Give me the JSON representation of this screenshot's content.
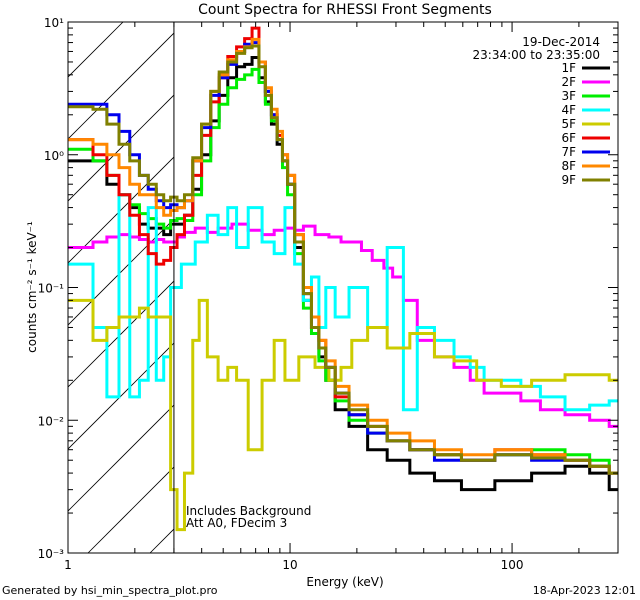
{
  "footer": {
    "generated_by": "Generated by hsi_min_spectra_plot.pro",
    "timestamp": "18-Apr-2023 12:01"
  },
  "chart_data": {
    "type": "line",
    "title": "Count Spectra for RHESSI Front Segments",
    "xlabel": "Energy (keV)",
    "ylabel": "counts cm⁻² s⁻¹ keV⁻¹",
    "xscale": "log",
    "yscale": "log",
    "xlim": [
      1,
      300
    ],
    "ylim": [
      0.001,
      10
    ],
    "x_ticks": [
      {
        "v": 1,
        "label": "1"
      },
      {
        "v": 10,
        "label": "10"
      },
      {
        "v": 100,
        "label": "100"
      }
    ],
    "y_ticks": [
      {
        "v": 0.001,
        "label": "10⁻³"
      },
      {
        "v": 0.01,
        "label": "10⁻²"
      },
      {
        "v": 0.1,
        "label": "10⁻¹"
      },
      {
        "v": 1,
        "label": "10⁰"
      },
      {
        "v": 10,
        "label": "10¹"
      }
    ],
    "attenuator_boundary_keV": 3,
    "legend_position": "top-right",
    "legend_header": [
      "19-Dec-2014",
      "23:34:00 to 23:35:00"
    ],
    "annotations": [
      "Includes Background",
      "Att A0, FDecim 3"
    ],
    "series": [
      {
        "name": "1F",
        "color": "#000000",
        "x": [
          1.2,
          1.4,
          1.6,
          1.8,
          2.0,
          2.2,
          2.4,
          2.6,
          2.8,
          3.0,
          3.2,
          3.5,
          3.8,
          4.2,
          4.6,
          5.0,
          5.5,
          6.0,
          6.5,
          7.0,
          7.5,
          8.0,
          8.5,
          9.0,
          9.5,
          10,
          11,
          12,
          13,
          14,
          15,
          17,
          20,
          25,
          30,
          40,
          50,
          70,
          100,
          150,
          200,
          250,
          300
        ],
        "y": [
          0.9,
          0.9,
          0.6,
          0.5,
          0.4,
          0.3,
          0.28,
          0.28,
          0.25,
          0.3,
          0.3,
          0.35,
          0.55,
          1.0,
          1.8,
          2.8,
          3.8,
          4.6,
          4.8,
          5.4,
          3.8,
          2.5,
          1.7,
          1.2,
          0.9,
          0.6,
          0.2,
          0.08,
          0.05,
          0.03,
          0.02,
          0.012,
          0.009,
          0.006,
          0.005,
          0.004,
          0.0035,
          0.003,
          0.0035,
          0.004,
          0.0045,
          0.004,
          0.003
        ]
      },
      {
        "name": "2F",
        "color": "#ff00ff",
        "x": [
          1.2,
          1.4,
          1.6,
          1.8,
          2.0,
          2.2,
          2.4,
          2.6,
          2.8,
          3.0,
          3.2,
          3.5,
          4.0,
          4.5,
          5.0,
          6.0,
          7.0,
          8.0,
          9.0,
          10,
          11,
          12,
          14,
          16,
          18,
          20,
          22,
          25,
          28,
          30,
          35,
          40,
          50,
          60,
          70,
          80,
          100,
          120,
          150,
          200,
          250,
          300
        ],
        "y": [
          0.2,
          0.22,
          0.24,
          0.25,
          0.24,
          0.23,
          0.22,
          0.23,
          0.22,
          0.22,
          0.24,
          0.26,
          0.28,
          0.26,
          0.28,
          0.3,
          0.27,
          0.25,
          0.27,
          0.28,
          0.27,
          0.29,
          0.25,
          0.24,
          0.22,
          0.22,
          0.19,
          0.16,
          0.14,
          0.12,
          0.08,
          0.04,
          0.03,
          0.025,
          0.02,
          0.016,
          0.016,
          0.014,
          0.012,
          0.011,
          0.01,
          0.009
        ]
      },
      {
        "name": "3F",
        "color": "#00ee00",
        "x": [
          1.2,
          1.4,
          1.6,
          1.8,
          2.0,
          2.2,
          2.4,
          2.6,
          2.8,
          3.0,
          3.2,
          3.5,
          3.8,
          4.2,
          4.6,
          5.0,
          5.5,
          6.0,
          6.5,
          7.0,
          7.5,
          8.0,
          8.5,
          9.0,
          9.5,
          10,
          11,
          12,
          13,
          14,
          15,
          17,
          20,
          25,
          30,
          40,
          50,
          70,
          100,
          150,
          200,
          250,
          300
        ],
        "y": [
          1.1,
          0.9,
          0.7,
          0.5,
          0.42,
          0.36,
          0.33,
          0.3,
          0.28,
          0.32,
          0.33,
          0.32,
          0.5,
          0.9,
          1.6,
          2.4,
          3.2,
          3.7,
          4.0,
          4.4,
          3.5,
          2.4,
          1.8,
          1.3,
          0.8,
          0.5,
          0.18,
          0.07,
          0.045,
          0.028,
          0.02,
          0.014,
          0.01,
          0.008,
          0.007,
          0.006,
          0.0055,
          0.005,
          0.0055,
          0.006,
          0.0055,
          0.005,
          0.004
        ]
      },
      {
        "name": "4F",
        "color": "#00ffff",
        "x": [
          1.2,
          1.4,
          1.6,
          1.8,
          2.0,
          2.2,
          2.4,
          2.6,
          2.8,
          3.0,
          3.5,
          4.0,
          4.5,
          5.0,
          5.5,
          6.0,
          7.0,
          8.0,
          9.0,
          10,
          11,
          12,
          13,
          14,
          15,
          17,
          20,
          25,
          30,
          35,
          40,
          50,
          60,
          70,
          80,
          100,
          120,
          150,
          200,
          250,
          300
        ],
        "y": [
          0.15,
          0.05,
          0.015,
          0.5,
          0.015,
          0.02,
          0.4,
          0.02,
          0.03,
          0.1,
          0.15,
          0.22,
          0.35,
          0.25,
          0.4,
          0.2,
          0.4,
          0.22,
          0.18,
          0.4,
          0.15,
          0.08,
          0.12,
          0.05,
          0.1,
          0.06,
          0.1,
          0.05,
          0.2,
          0.012,
          0.05,
          0.04,
          0.03,
          0.025,
          0.02,
          0.02,
          0.018,
          0.015,
          0.012,
          0.013,
          0.014
        ]
      },
      {
        "name": "5F",
        "color": "#cccc00",
        "x": [
          1.2,
          1.4,
          1.6,
          1.8,
          2.0,
          2.2,
          2.4,
          2.6,
          2.8,
          3.0,
          3.2,
          3.5,
          3.8,
          4.0,
          4.5,
          5.0,
          5.5,
          6.0,
          7.0,
          8.0,
          9.0,
          10,
          12,
          14,
          16,
          18,
          20,
          25,
          30,
          40,
          50,
          60,
          80,
          100,
          150,
          200,
          250,
          300
        ],
        "y": [
          0.08,
          0.04,
          0.05,
          0.06,
          0.06,
          0.07,
          0.06,
          0.06,
          0.06,
          0.003,
          0.0015,
          0.004,
          0.04,
          0.08,
          0.03,
          0.02,
          0.025,
          0.02,
          0.006,
          0.02,
          0.04,
          0.02,
          0.03,
          0.025,
          0.02,
          0.025,
          0.04,
          0.05,
          0.035,
          0.045,
          0.03,
          0.028,
          0.02,
          0.018,
          0.02,
          0.022,
          0.022,
          0.02
        ]
      },
      {
        "name": "6F",
        "color": "#ee0000",
        "x": [
          1.2,
          1.4,
          1.6,
          1.8,
          2.0,
          2.2,
          2.4,
          2.6,
          2.8,
          3.0,
          3.2,
          3.5,
          3.8,
          4.2,
          4.6,
          5.0,
          5.5,
          6.0,
          6.5,
          7.0,
          7.5,
          8.0,
          8.5,
          9.0,
          9.5,
          10,
          11,
          12,
          13,
          14,
          15,
          17,
          20,
          25,
          30,
          40,
          50,
          70,
          100,
          150,
          200,
          250,
          300
        ],
        "y": [
          1.3,
          1.0,
          0.7,
          0.5,
          0.35,
          0.25,
          0.18,
          0.15,
          0.16,
          0.2,
          0.25,
          0.35,
          0.7,
          1.4,
          2.5,
          3.8,
          5.5,
          6.5,
          7.5,
          9.0,
          5.0,
          3.0,
          2.0,
          1.4,
          1.0,
          0.7,
          0.25,
          0.1,
          0.06,
          0.04,
          0.025,
          0.015,
          0.011,
          0.009,
          0.007,
          0.006,
          0.0055,
          0.005,
          0.006,
          0.0055,
          0.005,
          0.0045,
          0.004
        ]
      },
      {
        "name": "7F",
        "color": "#0000ee",
        "x": [
          1.2,
          1.4,
          1.6,
          1.8,
          2.0,
          2.2,
          2.4,
          2.6,
          2.8,
          3.0,
          3.2,
          3.5,
          3.8,
          4.2,
          4.6,
          5.0,
          5.5,
          6.0,
          6.5,
          7.0,
          7.5,
          8.0,
          8.5,
          9.0,
          9.5,
          10,
          11,
          12,
          13,
          14,
          15,
          17,
          20,
          25,
          30,
          40,
          50,
          70,
          100,
          150,
          200,
          250,
          300
        ],
        "y": [
          2.4,
          2.4,
          2.0,
          1.5,
          1.0,
          0.7,
          0.55,
          0.45,
          0.4,
          0.42,
          0.4,
          0.45,
          0.9,
          1.6,
          2.8,
          3.8,
          4.8,
          6.0,
          6.8,
          7.0,
          5.0,
          3.0,
          2.0,
          1.3,
          0.9,
          0.6,
          0.22,
          0.09,
          0.05,
          0.035,
          0.025,
          0.016,
          0.011,
          0.008,
          0.007,
          0.006,
          0.005,
          0.005,
          0.0055,
          0.005,
          0.005,
          0.0045,
          0.004
        ]
      },
      {
        "name": "8F",
        "color": "#ff8800",
        "x": [
          1.2,
          1.4,
          1.6,
          1.8,
          2.0,
          2.2,
          2.4,
          2.6,
          2.8,
          3.0,
          3.2,
          3.5,
          3.8,
          4.2,
          4.6,
          5.0,
          5.5,
          6.0,
          6.5,
          7.0,
          7.5,
          8.0,
          8.5,
          9.0,
          9.5,
          10,
          11,
          12,
          13,
          14,
          15,
          17,
          20,
          25,
          30,
          40,
          50,
          70,
          100,
          150,
          200,
          250,
          300
        ],
        "y": [
          1.3,
          1.2,
          1.0,
          0.8,
          0.6,
          0.5,
          0.5,
          0.4,
          0.35,
          0.38,
          0.4,
          0.45,
          0.9,
          1.7,
          3.0,
          4.0,
          5.2,
          6.0,
          6.5,
          7.4,
          5.0,
          3.2,
          2.2,
          1.5,
          1.0,
          0.7,
          0.25,
          0.1,
          0.06,
          0.04,
          0.028,
          0.018,
          0.013,
          0.01,
          0.008,
          0.007,
          0.006,
          0.0055,
          0.006,
          0.0055,
          0.005,
          0.0045,
          0.004
        ]
      },
      {
        "name": "9F",
        "color": "#808000",
        "x": [
          1.2,
          1.4,
          1.6,
          1.8,
          2.0,
          2.2,
          2.4,
          2.6,
          2.8,
          3.0,
          3.2,
          3.5,
          3.8,
          4.2,
          4.6,
          5.0,
          5.5,
          6.0,
          6.5,
          7.0,
          7.5,
          8.0,
          8.5,
          9.0,
          9.5,
          10,
          11,
          12,
          13,
          14,
          15,
          17,
          20,
          25,
          30,
          40,
          50,
          70,
          100,
          150,
          200,
          250,
          300
        ],
        "y": [
          2.3,
          2.2,
          1.7,
          1.2,
          0.9,
          0.7,
          0.6,
          0.5,
          0.45,
          0.48,
          0.45,
          0.5,
          0.95,
          1.7,
          3.0,
          4.2,
          5.0,
          5.8,
          6.4,
          6.6,
          4.6,
          2.8,
          1.9,
          1.3,
          0.9,
          0.6,
          0.22,
          0.09,
          0.05,
          0.035,
          0.025,
          0.016,
          0.012,
          0.009,
          0.007,
          0.006,
          0.0055,
          0.005,
          0.0055,
          0.0052,
          0.005,
          0.0045,
          0.004
        ]
      }
    ]
  }
}
